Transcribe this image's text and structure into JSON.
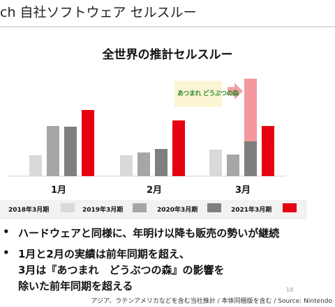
{
  "page": {
    "title": "ch 自社ソフトウェア セルスルー",
    "page_number": "18",
    "footnote": "アジア、ラテンアメリカなどを含む当社推計 / 本体同梱版を含む / Source: Nintendo"
  },
  "badge": {
    "text": "あつまれ どうぶつの森",
    "color_bg": "#fbf5d4",
    "color_text": "#2e8f2e"
  },
  "arrow": {
    "icon": "arrow-right-icon",
    "color": "#f4a0a8"
  },
  "bullets": [
    {
      "icon": "•",
      "lines": [
        "ハードウェアと同様に、年明け以降も販売の勢いが継続"
      ]
    },
    {
      "icon": "•",
      "lines": [
        "1月と2月の実績は前年同期を超え、",
        "3月は『あつまれ　どうぶつの森』の影響を",
        "除いた前年同期を超える"
      ]
    }
  ],
  "chart_data": {
    "type": "bar",
    "title": "全世界の推計セルスルー",
    "categories": [
      "1月",
      "2月",
      "3月"
    ],
    "series": [
      {
        "name": "2018年3月期",
        "color": "#d9d9d9",
        "values": [
          30,
          30,
          38
        ]
      },
      {
        "name": "2019年3月期",
        "color": "#a6a6a6",
        "values": [
          72,
          34,
          31
        ]
      },
      {
        "name": "2020年3月期",
        "color": "#7f7f7f",
        "values": [
          71,
          39,
          50
        ]
      },
      {
        "name": "2021年3月期",
        "color": "#e60012",
        "values": [
          95,
          80,
          72
        ]
      }
    ],
    "stacked_extra": {
      "category": "3月",
      "series": "2020年3月期",
      "label": "あつまれ どうぶつの森",
      "value": 90,
      "color": "#f5979f"
    },
    "ylim": [
      0,
      145
    ],
    "grid": false,
    "legend_position": "bottom",
    "xlabel": "",
    "ylabel": ""
  }
}
